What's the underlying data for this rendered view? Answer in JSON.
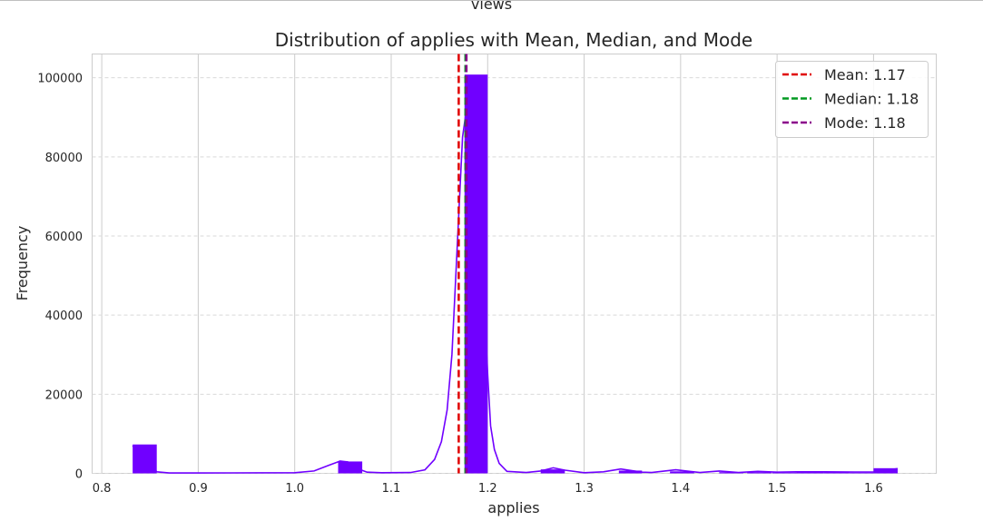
{
  "previous_figure": {
    "label": "views"
  },
  "chart_data": {
    "type": "histogram",
    "title": "Distribution of applies with Mean, Median, and Mode",
    "xlabel": "applies",
    "ylabel": "Frequency",
    "xlim": [
      0.79,
      1.665
    ],
    "ylim": [
      0,
      106000
    ],
    "xticks": [
      0.8,
      0.9,
      1.0,
      1.1,
      1.2,
      1.3,
      1.4,
      1.5,
      1.6
    ],
    "xtick_labels": [
      "0.8",
      "0.9",
      "1.0",
      "1.1",
      "1.2",
      "1.3",
      "1.4",
      "1.5",
      "1.6"
    ],
    "yticks": [
      0,
      20000,
      40000,
      60000,
      80000,
      100000
    ],
    "ytick_labels": [
      "0",
      "20000",
      "40000",
      "60000",
      "80000",
      "100000"
    ],
    "grid": true,
    "bar_color": "#7000ff",
    "bins": [
      {
        "x0": 0.832,
        "x1": 0.857,
        "count": 7300
      },
      {
        "x0": 1.045,
        "x1": 1.07,
        "count": 3000
      },
      {
        "x0": 1.176,
        "x1": 1.2,
        "count": 100800
      },
      {
        "x0": 1.255,
        "x1": 1.28,
        "count": 1000
      },
      {
        "x0": 1.336,
        "x1": 1.36,
        "count": 700
      },
      {
        "x0": 1.389,
        "x1": 1.414,
        "count": 500
      },
      {
        "x0": 1.44,
        "x1": 1.465,
        "count": 300
      },
      {
        "x0": 1.469,
        "x1": 1.494,
        "count": 300
      },
      {
        "x0": 1.495,
        "x1": 1.52,
        "count": 200
      },
      {
        "x0": 1.52,
        "x1": 1.548,
        "count": 300
      },
      {
        "x0": 1.548,
        "x1": 1.575,
        "count": 300
      },
      {
        "x0": 1.575,
        "x1": 1.6,
        "count": 200
      },
      {
        "x0": 1.6,
        "x1": 1.625,
        "count": 1300
      }
    ],
    "kde": {
      "x": [
        0.832,
        0.845,
        0.857,
        0.87,
        0.9,
        1.0,
        1.02,
        1.035,
        1.047,
        1.055,
        1.062,
        1.075,
        1.09,
        1.12,
        1.135,
        1.145,
        1.152,
        1.158,
        1.163,
        1.167,
        1.171,
        1.174,
        1.178,
        1.183,
        1.188,
        1.193,
        1.197,
        1.2,
        1.203,
        1.207,
        1.212,
        1.22,
        1.24,
        1.255,
        1.268,
        1.28,
        1.3,
        1.32,
        1.338,
        1.36,
        1.37,
        1.395,
        1.42,
        1.44,
        1.46,
        1.48,
        1.5,
        1.52,
        1.55,
        1.58,
        1.6,
        1.625
      ],
      "y": [
        7000,
        3500,
        400,
        100,
        100,
        150,
        600,
        2000,
        3100,
        2900,
        1500,
        300,
        150,
        200,
        900,
        3500,
        8000,
        16000,
        30000,
        50000,
        70000,
        85000,
        92000,
        95000,
        85000,
        60000,
        40000,
        25000,
        12000,
        6000,
        2500,
        500,
        200,
        600,
        1400,
        800,
        150,
        400,
        1100,
        300,
        200,
        900,
        200,
        600,
        200,
        500,
        300,
        400,
        400,
        350,
        350,
        1200
      ]
    },
    "reference_lines": [
      {
        "name": "Mean: 1.17",
        "x": 1.17,
        "color": "#e00000"
      },
      {
        "name": "Median: 1.18",
        "x": 1.177,
        "color": "#009a20"
      },
      {
        "name": "Mode: 1.18",
        "x": 1.178,
        "color": "#8b008b"
      }
    ],
    "legend_placement": "top-right"
  }
}
